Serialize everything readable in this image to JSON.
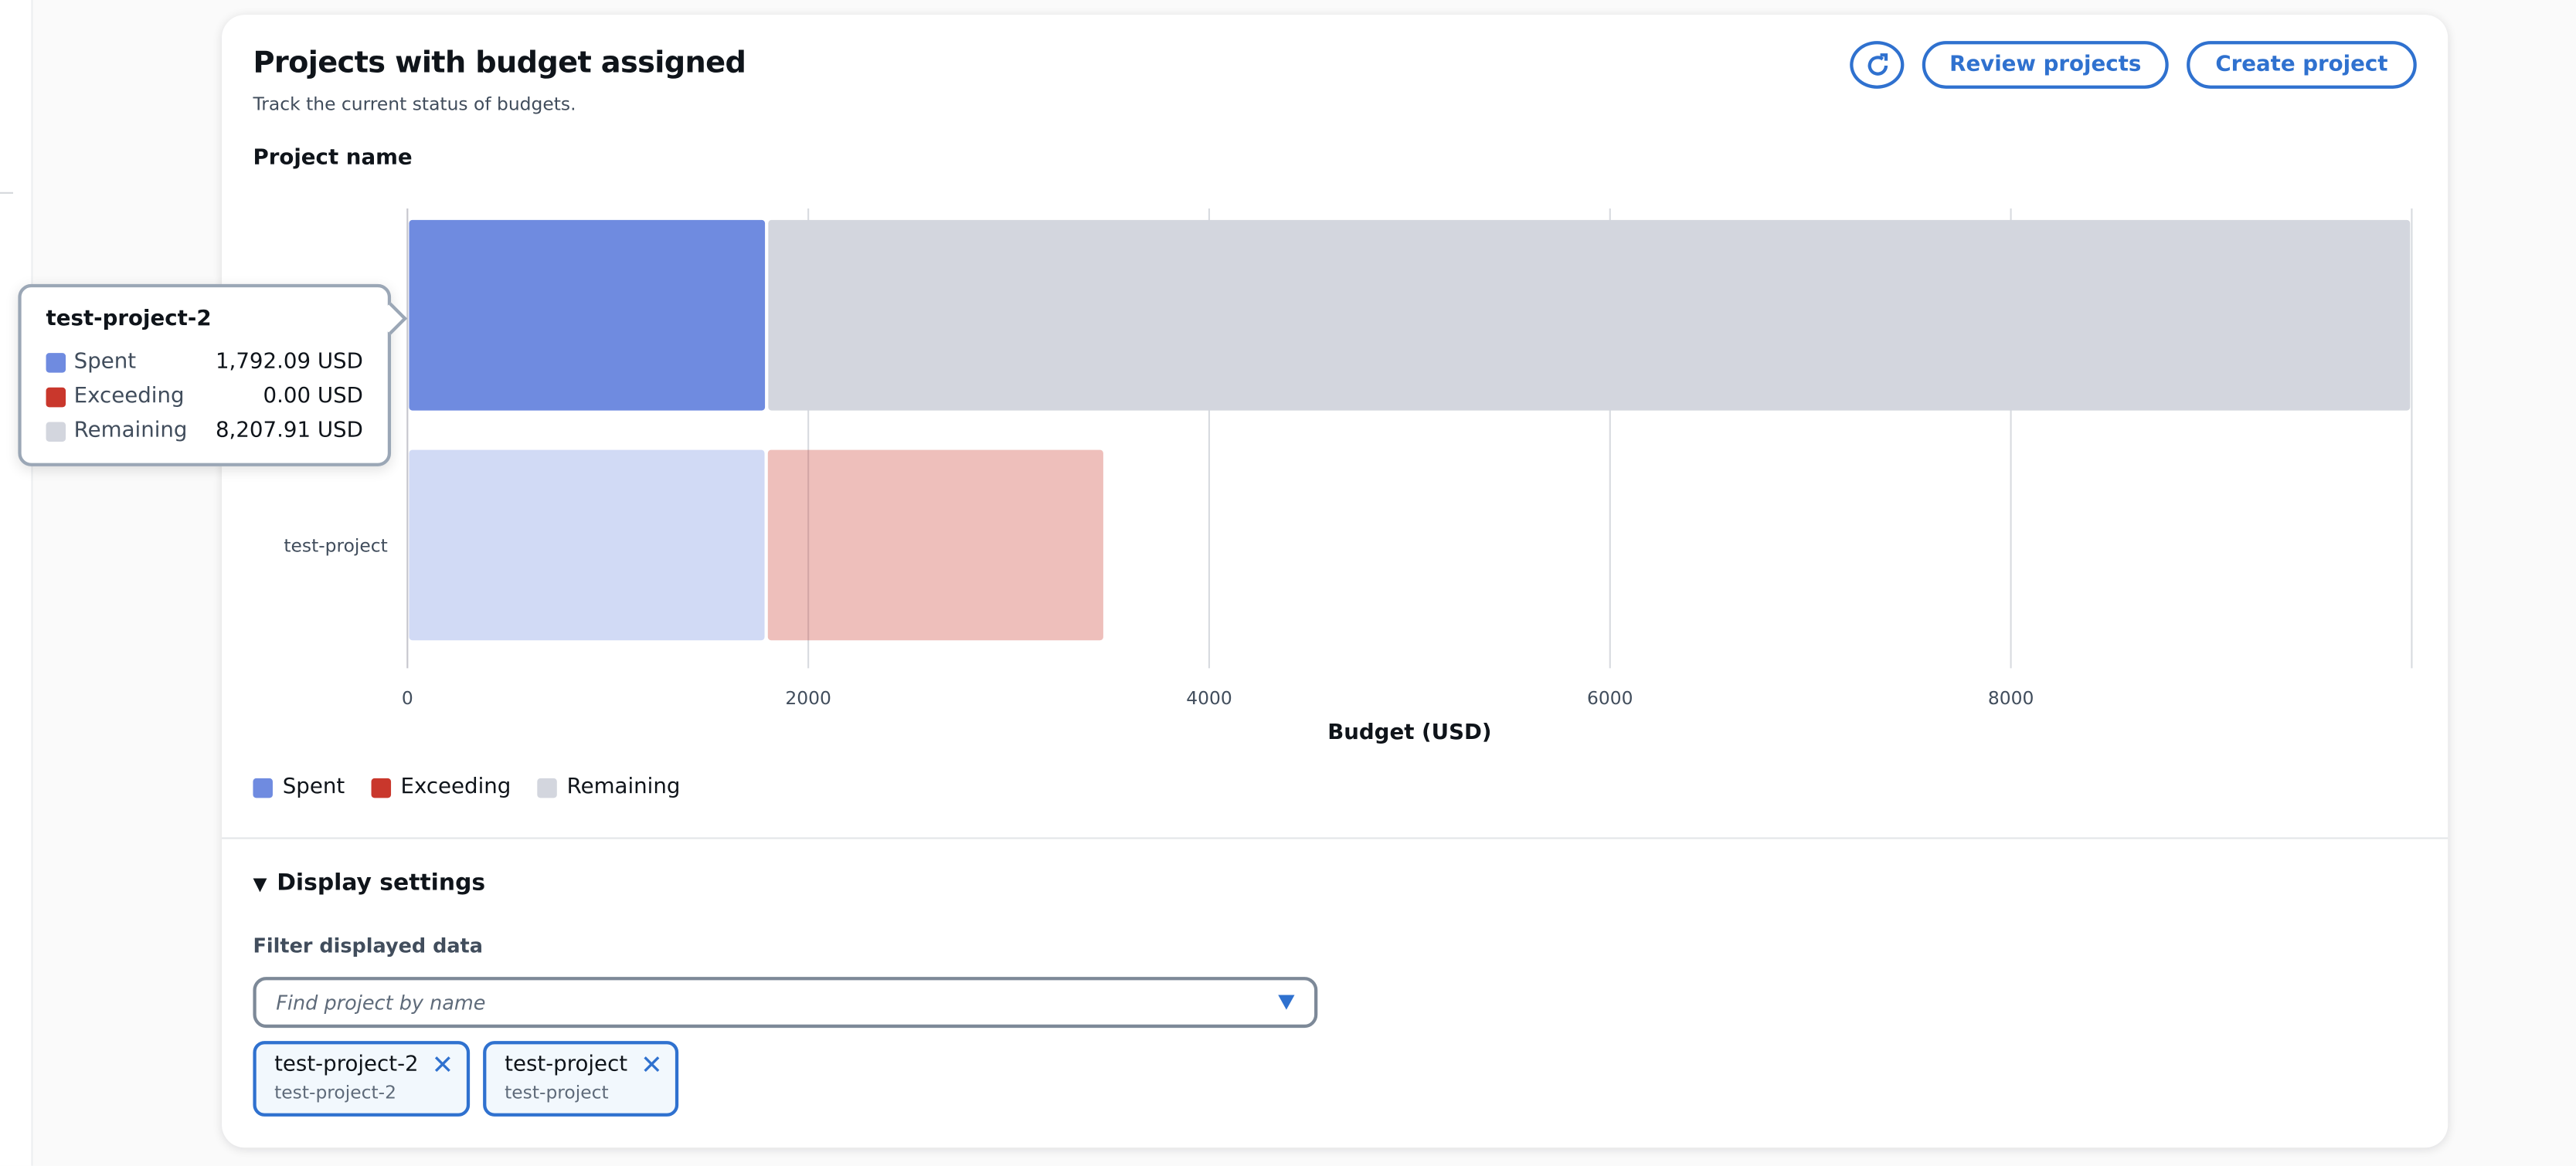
{
  "header": {
    "title": "Projects with budget assigned",
    "subtitle": "Track the current status of budgets.",
    "refresh_icon": "refresh-icon",
    "review_label": "Review projects",
    "create_label": "Create project"
  },
  "colors": {
    "spent": "#6f8be0",
    "exceeding": "#c9372c",
    "remaining": "#d3d6de",
    "accent": "#2f71cf"
  },
  "chart_data": {
    "type": "bar",
    "orientation": "horizontal",
    "stacked": true,
    "ylabel": "Project name",
    "xlabel": "Budget (USD)",
    "xlim": [
      0,
      10000
    ],
    "xticks": [
      0,
      2000,
      4000,
      6000,
      8000
    ],
    "grid": true,
    "legend_position": "bottom-left",
    "categories": [
      "test-project-2",
      "test-project"
    ],
    "category_labels_shown": [
      "",
      "test-project"
    ],
    "highlighted": "test-project-2",
    "series": [
      {
        "name": "Spent",
        "values": [
          1792.09,
          1790
        ]
      },
      {
        "name": "Exceeding",
        "values": [
          0,
          1690
        ]
      },
      {
        "name": "Remaining",
        "values": [
          8207.91,
          0
        ]
      }
    ]
  },
  "tooltip": {
    "title": "test-project-2",
    "rows": [
      {
        "label": "Spent",
        "value": "1,792.09 USD"
      },
      {
        "label": "Exceeding",
        "value": "0.00 USD"
      },
      {
        "label": "Remaining",
        "value": "8,207.91 USD"
      }
    ]
  },
  "legend": [
    "Spent",
    "Exceeding",
    "Remaining"
  ],
  "settings": {
    "title": "Display settings",
    "filter_label": "Filter displayed data",
    "placeholder": "Find project by name",
    "chips": [
      {
        "label": "test-project-2",
        "sub": "test-project-2"
      },
      {
        "label": "test-project",
        "sub": "test-project"
      }
    ]
  }
}
